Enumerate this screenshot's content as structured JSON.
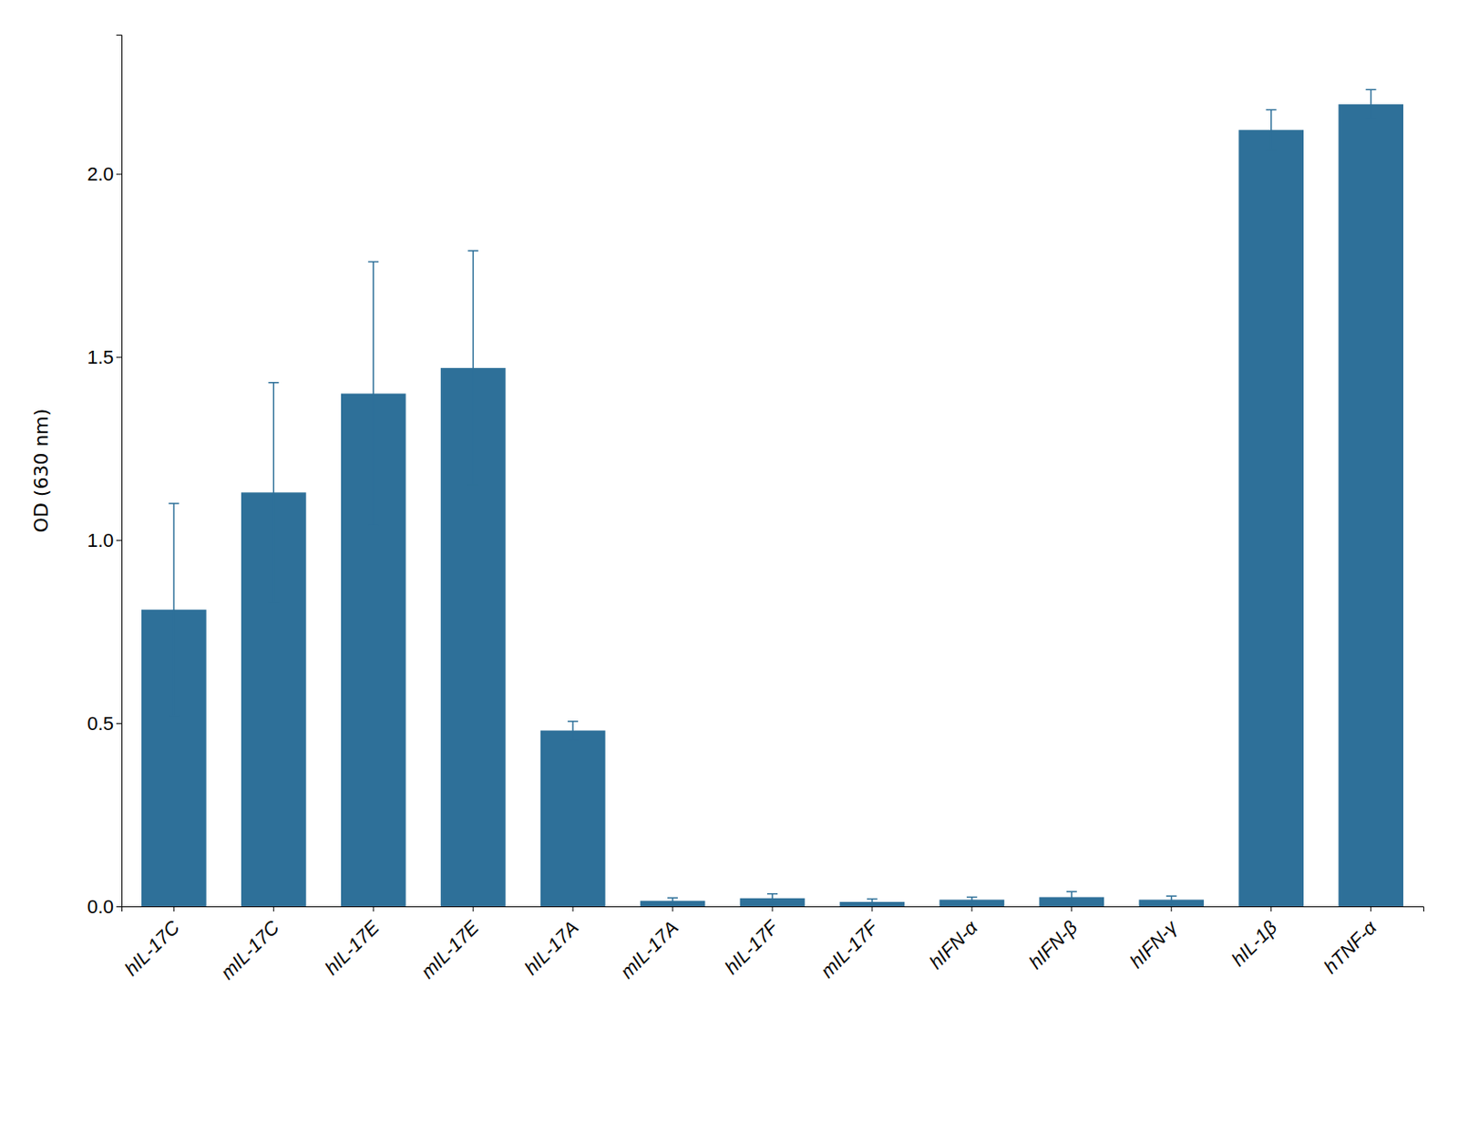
{
  "chart_data": {
    "type": "bar",
    "categories": [
      "hIL-17C",
      "mIL-17C",
      "hIL-17E",
      "mIL-17E",
      "hIL-17A",
      "mIL-17A",
      "hIL-17F",
      "mIL-17F",
      "hIFN-α",
      "hIFN-β",
      "hIFN-γ",
      "hIL-1β",
      "hTNF-α"
    ],
    "values": [
      0.81,
      1.13,
      1.4,
      1.47,
      0.48,
      0.015,
      0.022,
      0.012,
      0.018,
      0.025,
      0.018,
      2.12,
      2.19
    ],
    "errors": [
      0.29,
      0.3,
      0.36,
      0.32,
      0.025,
      0.008,
      0.012,
      0.008,
      0.007,
      0.015,
      0.01,
      0.055,
      0.04
    ],
    "color": "#2e7099",
    "ylabel": "OD (630 nm)",
    "ylim": [
      0,
      2.38
    ],
    "yticks": [
      {
        "value": 0.0,
        "label": "0.0"
      },
      0.5,
      {
        "value": 1.0,
        "label": "1.0"
      },
      1.5,
      {
        "value": 2.0,
        "label": "2.0"
      }
    ],
    "grid": false
  }
}
